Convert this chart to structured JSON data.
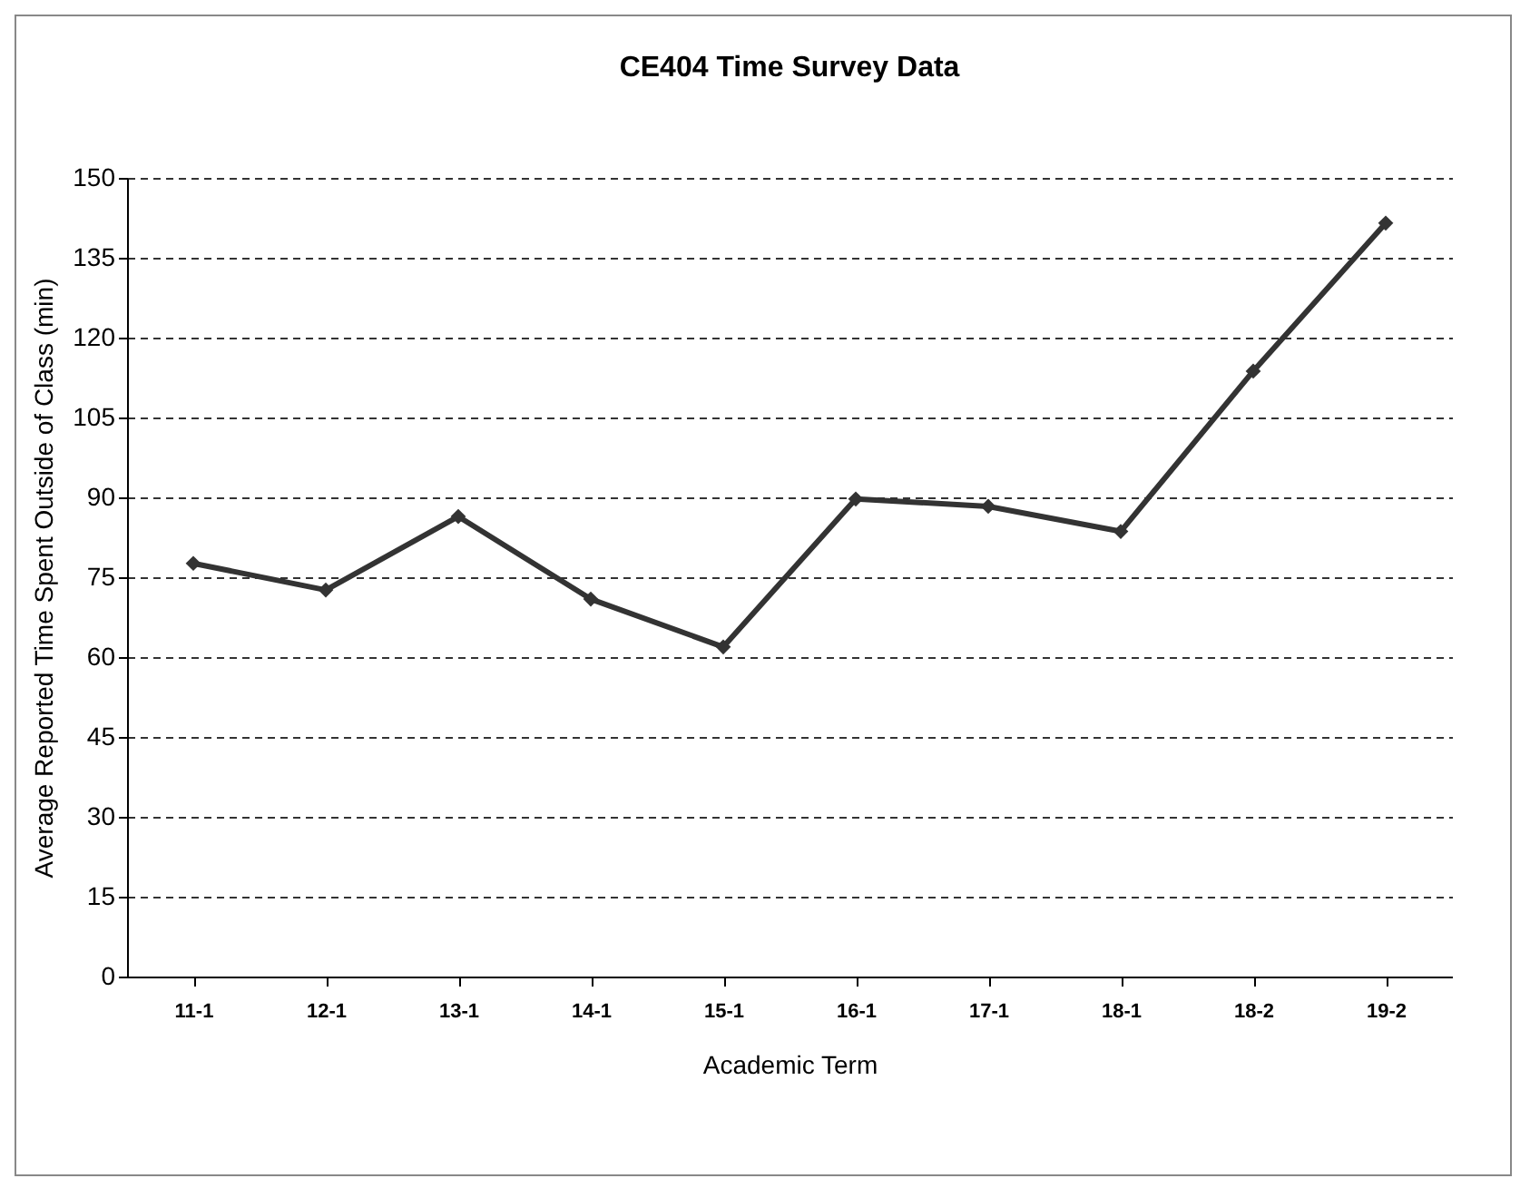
{
  "chart_data": {
    "type": "line",
    "title": "CE404 Time Survey Data",
    "xlabel": "Academic Term",
    "ylabel": "Average Reported Time Spent Outside of Class (min)",
    "categories": [
      "11-1",
      "12-1",
      "13-1",
      "14-1",
      "15-1",
      "16-1",
      "17-1",
      "18-1",
      "18-2",
      "19-2"
    ],
    "series": [
      {
        "color": "#333333",
        "values": [
          77.6,
          72.6,
          86.4,
          70.9,
          61.9,
          89.7,
          88.3,
          83.6,
          113.7,
          141.5
        ]
      }
    ],
    "ylim": [
      0,
      150
    ],
    "yticks": [
      0,
      15,
      30,
      45,
      60,
      75,
      90,
      105,
      120,
      135,
      150
    ],
    "grid": "y",
    "legend": false,
    "marker": "diamond",
    "line_style": "solid"
  }
}
